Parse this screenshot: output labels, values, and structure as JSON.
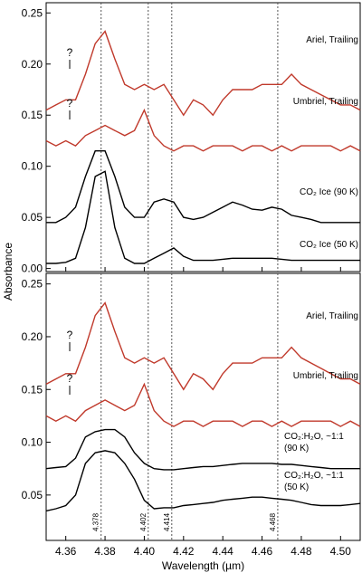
{
  "chart_data": [
    {
      "type": "line",
      "ylabel": "Absorbance",
      "x": [
        4.35,
        4.355,
        4.36,
        4.365,
        4.37,
        4.375,
        4.38,
        4.385,
        4.39,
        4.395,
        4.4,
        4.405,
        4.41,
        4.415,
        4.42,
        4.425,
        4.43,
        4.435,
        4.44,
        4.445,
        4.45,
        4.455,
        4.46,
        4.465,
        4.47,
        4.475,
        4.48,
        4.485,
        4.49,
        4.495,
        4.5,
        4.505,
        4.51
      ],
      "xlim": [
        4.35,
        4.51
      ],
      "xticks": [
        4.36,
        4.38,
        {
          "value": 4.4,
          "label": "4.40"
        },
        4.42,
        4.44,
        4.46,
        4.48,
        {
          "value": 4.5,
          "label": "4.50"
        }
      ],
      "ylim": [
        -0.003,
        0.26
      ],
      "yticks": [
        {
          "value": 0,
          "label": "0.00"
        },
        0.05,
        {
          "value": 0.1,
          "label": "0.10"
        },
        0.15,
        {
          "value": 0.2,
          "label": "0.20"
        },
        0.25
      ],
      "vlines": [
        4.378,
        4.402,
        4.414,
        4.468
      ],
      "annotations": [
        "?",
        "?"
      ],
      "series": [
        {
          "name": "Ariel, Trailing",
          "color": "#c0392b",
          "values": [
            0.155,
            0.16,
            0.165,
            0.165,
            0.19,
            0.22,
            0.232,
            0.205,
            0.18,
            0.175,
            0.18,
            0.175,
            0.18,
            0.165,
            0.15,
            0.165,
            0.16,
            0.15,
            0.165,
            0.175,
            0.175,
            0.175,
            0.18,
            0.18,
            0.18,
            0.19,
            0.18,
            0.175,
            0.17,
            0.165,
            0.16,
            0.16,
            0.155
          ]
        },
        {
          "name": "Umbriel, Trailing",
          "color": "#c0392b",
          "values": [
            0.125,
            0.12,
            0.125,
            0.12,
            0.13,
            0.135,
            0.14,
            0.135,
            0.13,
            0.135,
            0.155,
            0.13,
            0.12,
            0.115,
            0.12,
            0.12,
            0.115,
            0.12,
            0.12,
            0.12,
            0.115,
            0.12,
            0.12,
            0.115,
            0.12,
            0.115,
            0.12,
            0.12,
            0.12,
            0.12,
            0.115,
            0.12,
            0.115
          ]
        },
        {
          "name": "CO₂ Ice (90 K)",
          "color": "#000000",
          "values": [
            0.045,
            0.045,
            0.05,
            0.06,
            0.09,
            0.115,
            0.115,
            0.09,
            0.06,
            0.05,
            0.05,
            0.065,
            0.068,
            0.065,
            0.05,
            0.048,
            0.05,
            0.055,
            0.06,
            0.065,
            0.062,
            0.058,
            0.057,
            0.06,
            0.058,
            0.052,
            0.05,
            0.048,
            0.045,
            0.045,
            0.045,
            0.045,
            0.045
          ]
        },
        {
          "name": "CO₂ Ice (50 K)",
          "color": "#000000",
          "values": [
            0.005,
            0.005,
            0.006,
            0.01,
            0.04,
            0.09,
            0.095,
            0.04,
            0.01,
            0.005,
            0.005,
            0.01,
            0.015,
            0.02,
            0.012,
            0.008,
            0.008,
            0.008,
            0.009,
            0.01,
            0.01,
            0.01,
            0.01,
            0.01,
            0.009,
            0.008,
            0.008,
            0.008,
            0.008,
            0.008,
            0.008,
            0.008,
            0.008
          ]
        }
      ]
    },
    {
      "type": "line",
      "xlabel": "Wavelength (µm)",
      "x": [
        4.35,
        4.355,
        4.36,
        4.365,
        4.37,
        4.375,
        4.38,
        4.385,
        4.39,
        4.395,
        4.4,
        4.405,
        4.41,
        4.415,
        4.42,
        4.425,
        4.43,
        4.435,
        4.44,
        4.445,
        4.45,
        4.455,
        4.46,
        4.465,
        4.47,
        4.475,
        4.48,
        4.485,
        4.49,
        4.495,
        4.5,
        4.505,
        4.51
      ],
      "xlim": [
        4.35,
        4.51
      ],
      "xticks": [
        4.36,
        4.38,
        {
          "value": 4.4,
          "label": "4.40"
        },
        4.42,
        4.44,
        4.46,
        4.48,
        {
          "value": 4.5,
          "label": "4.50"
        }
      ],
      "ylim": [
        0.007,
        0.26
      ],
      "yticks": [
        0.05,
        {
          "value": 0.1,
          "label": "0.10"
        },
        0.15,
        {
          "value": 0.2,
          "label": "0.20"
        },
        0.25
      ],
      "vlines": [
        4.378,
        4.402,
        4.414,
        4.468
      ],
      "annotations": [
        "?",
        "?"
      ],
      "series": [
        {
          "name": "Ariel, Trailing",
          "color": "#c0392b",
          "values": [
            0.155,
            0.16,
            0.165,
            0.165,
            0.19,
            0.22,
            0.232,
            0.205,
            0.18,
            0.175,
            0.18,
            0.175,
            0.18,
            0.165,
            0.15,
            0.165,
            0.16,
            0.15,
            0.165,
            0.175,
            0.175,
            0.175,
            0.18,
            0.18,
            0.18,
            0.19,
            0.18,
            0.175,
            0.17,
            0.165,
            0.16,
            0.16,
            0.155
          ]
        },
        {
          "name": "Umbriel, Trailing",
          "color": "#c0392b",
          "values": [
            0.125,
            0.12,
            0.125,
            0.12,
            0.13,
            0.135,
            0.14,
            0.135,
            0.13,
            0.135,
            0.155,
            0.13,
            0.12,
            0.115,
            0.12,
            0.12,
            0.115,
            0.12,
            0.12,
            0.12,
            0.115,
            0.12,
            0.12,
            0.115,
            0.12,
            0.115,
            0.12,
            0.12,
            0.12,
            0.12,
            0.115,
            0.12,
            0.115
          ]
        },
        {
          "name": "CO₂:H₂O, ~1:1\n(90 K)",
          "color": "#000000",
          "values": [
            0.075,
            0.076,
            0.077,
            0.085,
            0.105,
            0.11,
            0.112,
            0.112,
            0.105,
            0.09,
            0.08,
            0.075,
            0.074,
            0.074,
            0.075,
            0.076,
            0.077,
            0.077,
            0.078,
            0.079,
            0.08,
            0.08,
            0.08,
            0.08,
            0.079,
            0.079,
            0.078,
            0.077,
            0.076,
            0.075,
            0.075,
            0.075,
            0.075
          ]
        },
        {
          "name": "CO₂:H₂O, ~1:1\n(50 K)",
          "color": "#000000",
          "values": [
            0.035,
            0.037,
            0.04,
            0.05,
            0.08,
            0.09,
            0.092,
            0.09,
            0.08,
            0.065,
            0.045,
            0.037,
            0.038,
            0.038,
            0.04,
            0.041,
            0.042,
            0.043,
            0.045,
            0.046,
            0.047,
            0.048,
            0.048,
            0.047,
            0.046,
            0.045,
            0.043,
            0.041,
            0.04,
            0.04,
            0.04,
            0.041,
            0.042
          ]
        }
      ]
    }
  ]
}
